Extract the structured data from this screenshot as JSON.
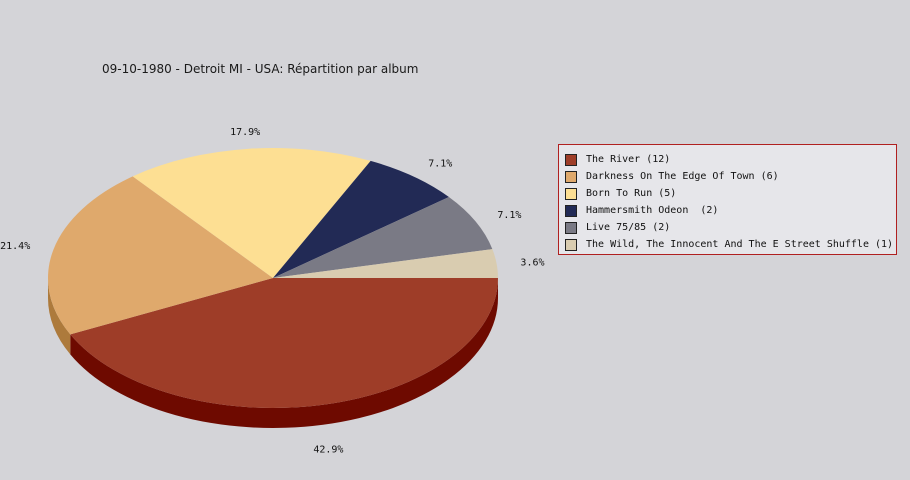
{
  "chart_data": {
    "type": "pie",
    "title": "09-10-1980 - Detroit MI - USA:  Répartition par album",
    "legend_position": "right",
    "slices": [
      {
        "label": "The River (12)",
        "value": 12,
        "percent_label": "42.9%",
        "color": "#9e3d28",
        "side_color": "#6e0a00"
      },
      {
        "label": "Darkness On The Edge Of Town (6)",
        "value": 6,
        "percent_label": "21.4%",
        "color": "#dfa96c",
        "side_color": "#ad7a3c"
      },
      {
        "label": "Born To Run (5)",
        "value": 5,
        "percent_label": "17.9%",
        "color": "#fddf93",
        "side_color": "#c9ad60"
      },
      {
        "label": "Hammersmith Odeon  (2)",
        "value": 2,
        "percent_label": "7.1%",
        "color": "#222a55",
        "side_color": "#101530"
      },
      {
        "label": "Live 75/85 (2)",
        "value": 2,
        "percent_label": "7.1%",
        "color": "#7a7a85",
        "side_color": "#50505a"
      },
      {
        "label": "The Wild, The Innocent And The E Street Shuffle (1)",
        "value": 1,
        "percent_label": "3.6%",
        "color": "#d9ccb0",
        "side_color": "#a89a80"
      }
    ]
  }
}
